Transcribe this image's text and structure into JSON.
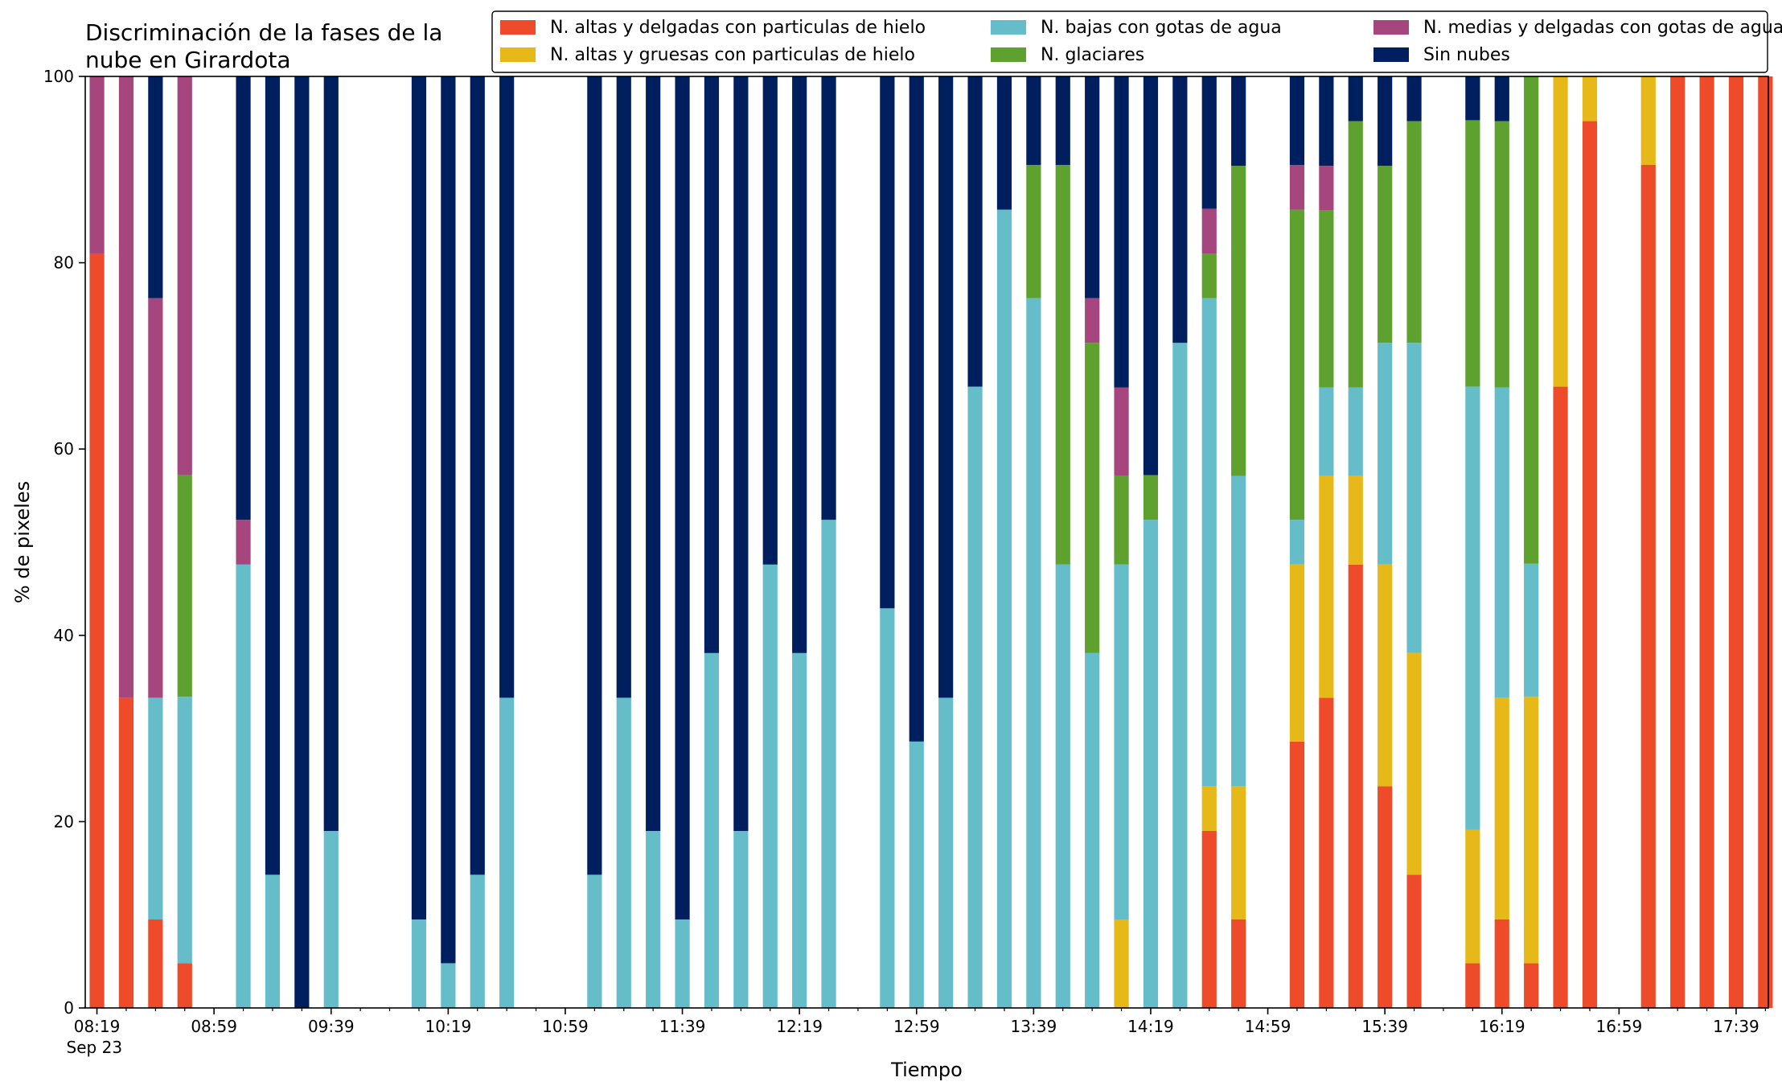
{
  "chart_data": {
    "type": "bar",
    "stacked": true,
    "title_line1": "Discriminación de la fases de la",
    "title_line2": "nube en Girardota",
    "xlabel": "Tiempo",
    "ylabel": "% de pixeles",
    "ylim": [
      0,
      100
    ],
    "yticks": [
      "0",
      "20",
      "40",
      "60",
      "80",
      "100"
    ],
    "xlim_minutes": [
      495,
      1070
    ],
    "xticks": [
      {
        "label": "08:19",
        "min": 499
      },
      {
        "label": "08:59",
        "min": 539
      },
      {
        "label": "09:39",
        "min": 579
      },
      {
        "label": "10:19",
        "min": 619
      },
      {
        "label": "10:59",
        "min": 659
      },
      {
        "label": "11:39",
        "min": 699
      },
      {
        "label": "12:19",
        "min": 739
      },
      {
        "label": "12:59",
        "min": 779
      },
      {
        "label": "13:39",
        "min": 819
      },
      {
        "label": "14:19",
        "min": 859
      },
      {
        "label": "14:59",
        "min": 899
      },
      {
        "label": "15:39",
        "min": 939
      },
      {
        "label": "16:19",
        "min": 979
      },
      {
        "label": "16:59",
        "min": 1019
      },
      {
        "label": "17:39",
        "min": 1059
      }
    ],
    "date_label": "Sep 23",
    "legend_position": "top-right",
    "series": [
      {
        "name": "N. altas y delgadas con particulas de hielo",
        "color": "#EE4B2B"
      },
      {
        "name": "N. altas y gruesas con particulas de hielo",
        "color": "#E6B818"
      },
      {
        "name": "N. bajas con gotas de agua",
        "color": "#66BDCA"
      },
      {
        "name": "N. glaciares",
        "color": "#5FA12F"
      },
      {
        "name": "N. medias y delgadas con gotas de agua",
        "color": "#A5477E"
      },
      {
        "name": "Sin nubes",
        "color": "#001F5F"
      }
    ],
    "bar_width_minutes": 5,
    "bars": [
      {
        "t": "08:19",
        "v": [
          81,
          0,
          0,
          0,
          19,
          0
        ]
      },
      {
        "t": "08:29",
        "v": [
          33.3,
          0,
          0,
          0,
          66.7,
          0
        ]
      },
      {
        "t": "08:39",
        "v": [
          9.5,
          0,
          23.8,
          0,
          42.9,
          23.8
        ]
      },
      {
        "t": "08:49",
        "v": [
          4.8,
          0,
          28.6,
          23.8,
          42.8,
          0
        ]
      },
      {
        "t": "09:09",
        "v": [
          0,
          0,
          47.6,
          0,
          4.8,
          47.6
        ]
      },
      {
        "t": "09:19",
        "v": [
          0,
          0,
          14.3,
          0,
          0,
          85.7
        ]
      },
      {
        "t": "09:29",
        "v": [
          0,
          0,
          0,
          0,
          0,
          100
        ]
      },
      {
        "t": "09:39",
        "v": [
          0,
          0,
          19,
          0,
          0,
          81
        ]
      },
      {
        "t": "10:09",
        "v": [
          0,
          0,
          9.5,
          0,
          0,
          90.5
        ]
      },
      {
        "t": "10:19",
        "v": [
          0,
          0,
          4.8,
          0,
          0,
          95.2
        ]
      },
      {
        "t": "10:29",
        "v": [
          0,
          0,
          14.3,
          0,
          0,
          85.7
        ]
      },
      {
        "t": "10:39",
        "v": [
          0,
          0,
          33.3,
          0,
          0,
          66.7
        ]
      },
      {
        "t": "11:09",
        "v": [
          0,
          0,
          14.3,
          0,
          0,
          85.7
        ]
      },
      {
        "t": "11:19",
        "v": [
          0,
          0,
          33.3,
          0,
          0,
          66.7
        ]
      },
      {
        "t": "11:29",
        "v": [
          0,
          0,
          19,
          0,
          0,
          81
        ]
      },
      {
        "t": "11:39",
        "v": [
          0,
          0,
          9.5,
          0,
          0,
          90.5
        ]
      },
      {
        "t": "11:49",
        "v": [
          0,
          0,
          38.1,
          0,
          0,
          61.9
        ]
      },
      {
        "t": "11:59",
        "v": [
          0,
          0,
          19,
          0,
          0,
          81
        ]
      },
      {
        "t": "12:09",
        "v": [
          0,
          0,
          47.6,
          0,
          0,
          52.4
        ]
      },
      {
        "t": "12:19",
        "v": [
          0,
          0,
          38.1,
          0,
          0,
          61.9
        ]
      },
      {
        "t": "12:29",
        "v": [
          0,
          0,
          52.4,
          0,
          0,
          47.6
        ]
      },
      {
        "t": "12:49",
        "v": [
          0,
          0,
          42.9,
          0,
          0,
          57.1
        ]
      },
      {
        "t": "12:59",
        "v": [
          0,
          0,
          28.6,
          0,
          0,
          71.4
        ]
      },
      {
        "t": "13:09",
        "v": [
          0,
          0,
          33.3,
          0,
          0,
          66.7
        ]
      },
      {
        "t": "13:19",
        "v": [
          0,
          0,
          66.7,
          0,
          0,
          33.3
        ]
      },
      {
        "t": "13:29",
        "v": [
          0,
          0,
          85.7,
          0,
          0,
          14.3
        ]
      },
      {
        "t": "13:39",
        "v": [
          0,
          0,
          76.2,
          14.3,
          0,
          9.5
        ]
      },
      {
        "t": "13:49",
        "v": [
          0,
          0,
          47.6,
          42.9,
          0,
          9.5
        ]
      },
      {
        "t": "13:59",
        "v": [
          0,
          0,
          38.1,
          33.3,
          4.8,
          23.8
        ]
      },
      {
        "t": "14:09",
        "v": [
          0,
          9.5,
          38.1,
          9.5,
          9.5,
          33.4
        ]
      },
      {
        "t": "14:19",
        "v": [
          0,
          0,
          52.4,
          4.8,
          0,
          42.8
        ]
      },
      {
        "t": "14:29",
        "v": [
          0,
          0,
          71.4,
          0,
          0,
          28.6
        ]
      },
      {
        "t": "14:39",
        "v": [
          19,
          4.8,
          52.4,
          4.8,
          4.8,
          14.2
        ]
      },
      {
        "t": "14:49",
        "v": [
          9.5,
          14.3,
          33.3,
          33.3,
          0,
          9.6
        ]
      },
      {
        "t": "15:09",
        "v": [
          28.6,
          19,
          4.8,
          33.3,
          4.8,
          9.5
        ]
      },
      {
        "t": "15:19",
        "v": [
          33.3,
          23.8,
          9.5,
          19,
          4.8,
          9.6
        ]
      },
      {
        "t": "15:29",
        "v": [
          47.6,
          9.5,
          9.5,
          28.6,
          0,
          4.8
        ]
      },
      {
        "t": "15:39",
        "v": [
          23.8,
          23.8,
          23.8,
          19,
          0,
          9.6
        ]
      },
      {
        "t": "15:49",
        "v": [
          14.3,
          23.8,
          33.3,
          23.8,
          0,
          4.8
        ]
      },
      {
        "t": "16:09",
        "v": [
          4.8,
          14.3,
          47.6,
          28.6,
          0,
          4.7
        ]
      },
      {
        "t": "16:19",
        "v": [
          9.5,
          23.8,
          33.3,
          28.6,
          0,
          4.8
        ]
      },
      {
        "t": "16:29",
        "v": [
          4.8,
          28.6,
          14.3,
          52.3,
          0,
          0
        ]
      },
      {
        "t": "16:39",
        "v": [
          66.7,
          33.3,
          0,
          0,
          0,
          0
        ]
      },
      {
        "t": "16:49",
        "v": [
          95.2,
          4.8,
          0,
          0,
          0,
          0
        ]
      },
      {
        "t": "17:09",
        "v": [
          90.5,
          9.5,
          0,
          0,
          0,
          0
        ]
      },
      {
        "t": "17:19",
        "v": [
          100,
          0,
          0,
          0,
          0,
          0
        ]
      },
      {
        "t": "17:29",
        "v": [
          100,
          0,
          0,
          0,
          0,
          0
        ]
      },
      {
        "t": "17:39",
        "v": [
          100,
          0,
          0,
          0,
          0,
          0
        ]
      },
      {
        "t": "17:49",
        "v": [
          100,
          0,
          0,
          0,
          0,
          0
        ]
      }
    ]
  }
}
